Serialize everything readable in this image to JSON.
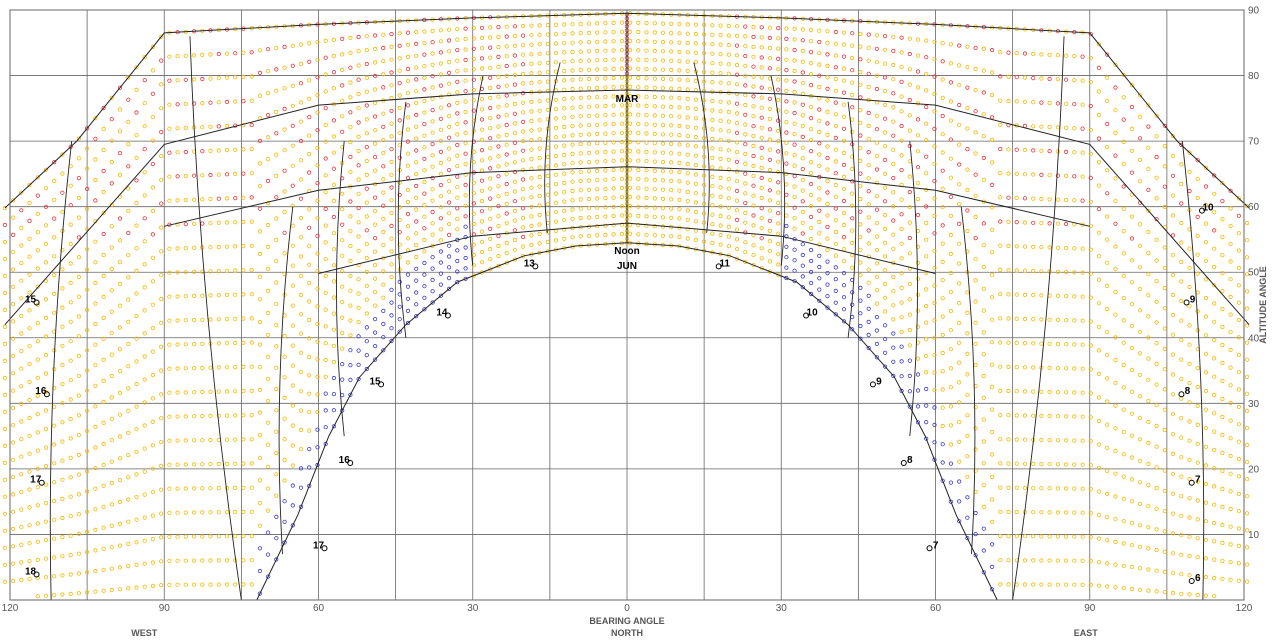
{
  "chart_data": {
    "type": "scatter",
    "title": "",
    "xlabel": "BEARING ANGLE",
    "ylabel": "ALTITUDE ANGLE",
    "x_direction_labels": [
      {
        "x": -90,
        "label": "WEST"
      },
      {
        "x": 0,
        "label": "NORTH"
      },
      {
        "x": 90,
        "label": "EAST"
      }
    ],
    "xlim": [
      -120,
      120
    ],
    "ylim": [
      0,
      90
    ],
    "x_tick_values": [
      -120,
      -90,
      -60,
      -30,
      0,
      30,
      60,
      90,
      120
    ],
    "x_tick_labels": [
      "120",
      "90",
      "60",
      "30",
      "0",
      "30",
      "60",
      "90",
      "120"
    ],
    "y_tick_values": [
      10,
      20,
      30,
      40,
      50,
      60,
      70,
      80,
      90
    ],
    "y_tick_labels": [
      "10",
      "20",
      "30",
      "40",
      "50",
      "60",
      "70",
      "80",
      "90"
    ],
    "grid": true,
    "x_gridlines": [
      -120,
      -105,
      -90,
      -75,
      -60,
      -45,
      -30,
      -15,
      0,
      15,
      30,
      45,
      60,
      75,
      90,
      105,
      120
    ],
    "y_gridlines": [
      10,
      20,
      30,
      40,
      50,
      60,
      70,
      80,
      90
    ],
    "colors": {
      "orange": "#f5b800",
      "red": "#e8353b",
      "blue": "#3a3acd",
      "grid": "#666666",
      "curve": "#222222"
    },
    "hour_labels": [
      {
        "text": "6",
        "x": 111,
        "y": 3.5
      },
      {
        "text": "7",
        "x": 111,
        "y": 18.5
      },
      {
        "text": "8",
        "x": 109,
        "y": 32
      },
      {
        "text": "9",
        "x": 110,
        "y": 46
      },
      {
        "text": "10",
        "x": 113,
        "y": 60
      },
      {
        "text": "7",
        "x": 60,
        "y": 8.5
      },
      {
        "text": "8",
        "x": 55,
        "y": 21.5
      },
      {
        "text": "9",
        "x": 49,
        "y": 33.5
      },
      {
        "text": "10",
        "x": 36,
        "y": 44
      },
      {
        "text": "11",
        "x": 19,
        "y": 51.5
      },
      {
        "text": "13",
        "x": -19,
        "y": 51.5
      },
      {
        "text": "14",
        "x": -36,
        "y": 44
      },
      {
        "text": "15",
        "x": -49,
        "y": 33.5
      },
      {
        "text": "16",
        "x": -55,
        "y": 21.5
      },
      {
        "text": "17",
        "x": -60,
        "y": 8.5
      },
      {
        "text": "15",
        "x": -116,
        "y": 46
      },
      {
        "text": "16",
        "x": -114,
        "y": 32
      },
      {
        "text": "17",
        "x": -115,
        "y": 18.5
      },
      {
        "text": "18",
        "x": -116,
        "y": 4.5
      }
    ],
    "month_labels": [
      {
        "text": "MAR",
        "x": 0,
        "y": 76
      },
      {
        "text": "Noon",
        "x": 0,
        "y": 52.8
      },
      {
        "text": "JUN",
        "x": 0,
        "y": 50.5
      }
    ],
    "series": [
      {
        "label": "MAR",
        "points": [
          [
            -121,
            59.8
          ],
          [
            -107,
            70
          ],
          [
            -90,
            86.5
          ],
          [
            -60,
            87.8
          ],
          [
            -30,
            88.8
          ],
          [
            0,
            89.5
          ],
          [
            30,
            88.8
          ],
          [
            60,
            87.8
          ],
          [
            90,
            86.5
          ],
          [
            107,
            70
          ],
          [
            121,
            59.8
          ]
        ]
      },
      {
        "label": "",
        "points": [
          [
            -121,
            42
          ],
          [
            -90,
            69.5
          ],
          [
            -60,
            75.5
          ],
          [
            -30,
            77.2
          ],
          [
            0,
            77.8
          ],
          [
            30,
            77.2
          ],
          [
            60,
            75.5
          ],
          [
            90,
            69.5
          ],
          [
            121,
            42
          ]
        ]
      },
      {
        "label": "",
        "points": [
          [
            -90,
            57
          ],
          [
            -60,
            62.5
          ],
          [
            -30,
            65.2
          ],
          [
            0,
            66.1
          ],
          [
            30,
            65.2
          ],
          [
            60,
            62.5
          ],
          [
            90,
            57
          ]
        ]
      },
      {
        "label": "Noon",
        "points": [
          [
            -60,
            49.8
          ],
          [
            -30,
            55.5
          ],
          [
            0,
            57.5
          ],
          [
            30,
            55.5
          ],
          [
            60,
            49.8
          ]
        ]
      },
      {
        "label": "JUN",
        "points": [
          [
            -72,
            0
          ],
          [
            -64,
            13
          ],
          [
            -58,
            25
          ],
          [
            -52,
            34
          ],
          [
            -43,
            42
          ],
          [
            -33,
            48.5
          ],
          [
            -20,
            52.5
          ],
          [
            -10,
            54
          ],
          [
            0,
            54.5
          ],
          [
            10,
            54
          ],
          [
            20,
            52.5
          ],
          [
            33,
            48.5
          ],
          [
            43,
            42
          ],
          [
            52,
            34
          ],
          [
            58,
            25
          ],
          [
            64,
            13
          ],
          [
            72,
            0
          ]
        ]
      }
    ],
    "analemmas": [
      {
        "x_top": -13,
        "y_top": 82,
        "x_bot": -15.5,
        "y_bot": 56
      },
      {
        "x_top": -28,
        "y_top": 80,
        "x_bot": -30,
        "y_bot": 51
      },
      {
        "x_top": -43,
        "y_top": 76,
        "x_bot": -43,
        "y_bot": 40
      },
      {
        "x_top": -55,
        "y_top": 70,
        "x_bot": -55,
        "y_bot": 25
      },
      {
        "x_top": -65,
        "y_top": 60,
        "x_bot": -67,
        "y_bot": 7
      },
      {
        "x_top": -85,
        "y_top": 86,
        "x_bot": -75,
        "y_bot": 0
      },
      {
        "x_top": -108,
        "y_top": 70,
        "x_bot": -112,
        "y_bot": 0
      },
      {
        "x_top": 13,
        "y_top": 82,
        "x_bot": 15.5,
        "y_bot": 56
      },
      {
        "x_top": 28,
        "y_top": 80,
        "x_bot": 30,
        "y_bot": 51
      },
      {
        "x_top": 43,
        "y_top": 76,
        "x_bot": 43,
        "y_bot": 40
      },
      {
        "x_top": 55,
        "y_top": 70,
        "x_bot": 55,
        "y_bot": 25
      },
      {
        "x_top": 65,
        "y_top": 60,
        "x_bot": 67,
        "y_bot": 7
      },
      {
        "x_top": 85,
        "y_top": 86,
        "x_bot": 75,
        "y_bot": 0
      },
      {
        "x_top": 108,
        "y_top": 70,
        "x_bot": 112,
        "y_bot": 0
      }
    ]
  }
}
